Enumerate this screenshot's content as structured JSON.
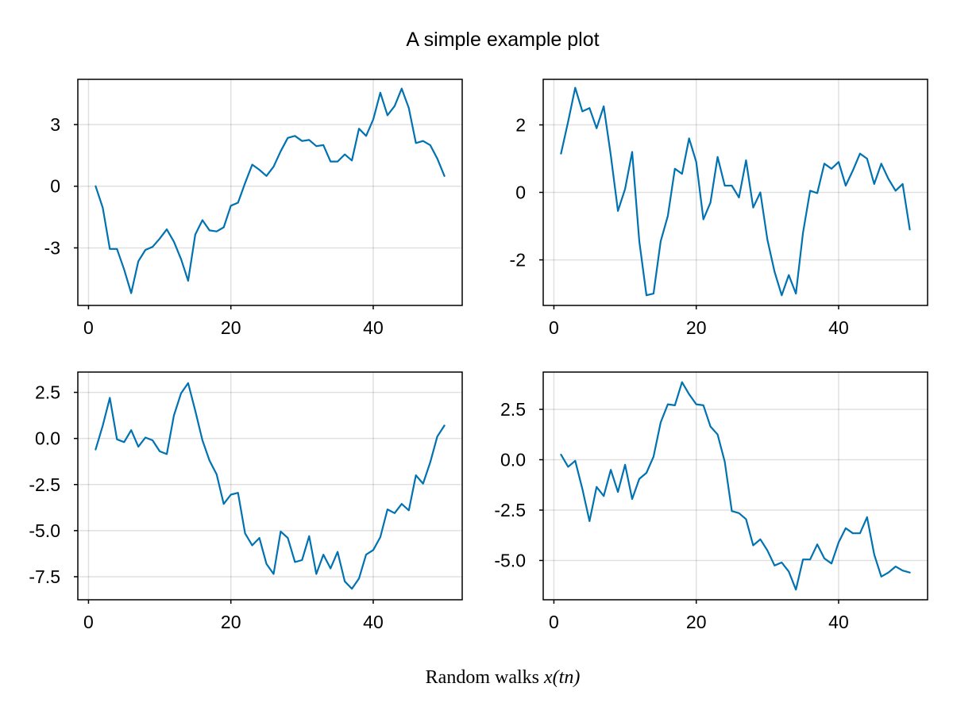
{
  "figure": {
    "title": "A simple example plot",
    "xlabel_text": "Random walks ",
    "xlabel_math": "x(tn)"
  },
  "chart_data": [
    {
      "type": "line",
      "title": "",
      "xlabel": "",
      "ylabel": "",
      "grid": true,
      "xlim": [
        -1.5,
        52.5
      ],
      "ylim": [
        -5.8,
        5.2
      ],
      "xticks": [
        0,
        20,
        40
      ],
      "xtick_labels": [
        "0",
        "20",
        "40"
      ],
      "yticks": [
        -3,
        0,
        3
      ],
      "ytick_labels": [
        "-3",
        "0",
        "3"
      ],
      "color": "#0072b2",
      "series": [
        {
          "x": [
            1,
            2,
            3,
            4,
            5,
            6,
            7,
            8,
            9,
            10,
            11,
            12,
            13,
            14,
            15,
            16,
            17,
            18,
            19,
            20,
            21,
            22,
            23,
            24,
            25,
            26,
            27,
            28,
            29,
            30,
            31,
            32,
            33,
            34,
            35,
            36,
            37,
            38,
            39,
            40,
            41,
            42,
            43,
            44,
            45,
            46,
            47,
            48,
            49,
            50
          ],
          "values": [
            0,
            -1.05,
            -3.05,
            -3.05,
            -4.05,
            -5.2,
            -3.65,
            -3.1,
            -2.95,
            -2.55,
            -2.1,
            -2.7,
            -3.55,
            -4.6,
            -2.35,
            -1.65,
            -2.15,
            -2.2,
            -2.0,
            -0.95,
            -0.8,
            0.15,
            1.05,
            0.8,
            0.5,
            0.95,
            1.7,
            2.35,
            2.45,
            2.2,
            2.25,
            1.95,
            2.0,
            1.2,
            1.2,
            1.55,
            1.25,
            2.8,
            2.45,
            3.25,
            4.55,
            3.45,
            3.9,
            4.75,
            3.8,
            2.1,
            2.2,
            2.0,
            1.35,
            0.5
          ]
        }
      ]
    },
    {
      "type": "line",
      "title": "",
      "xlabel": "",
      "ylabel": "",
      "grid": true,
      "xlim": [
        -1.5,
        52.5
      ],
      "ylim": [
        -3.35,
        3.35
      ],
      "xticks": [
        0,
        20,
        40
      ],
      "xtick_labels": [
        "0",
        "20",
        "40"
      ],
      "yticks": [
        -2,
        0,
        2
      ],
      "ytick_labels": [
        "-2",
        "0",
        "2"
      ],
      "color": "#0072b2",
      "series": [
        {
          "x": [
            1,
            2,
            3,
            4,
            5,
            6,
            7,
            8,
            9,
            10,
            11,
            12,
            13,
            14,
            15,
            16,
            17,
            18,
            19,
            20,
            21,
            22,
            23,
            24,
            25,
            26,
            27,
            28,
            29,
            30,
            31,
            32,
            33,
            34,
            35,
            36,
            37,
            38,
            39,
            40,
            41,
            42,
            43,
            44,
            45,
            46,
            47,
            48,
            49,
            50
          ],
          "values": [
            1.15,
            2.1,
            3.1,
            2.4,
            2.5,
            1.9,
            2.55,
            1.1,
            -0.55,
            0.1,
            1.2,
            -1.45,
            -3.05,
            -3.0,
            -1.45,
            -0.7,
            0.7,
            0.55,
            1.6,
            0.9,
            -0.8,
            -0.3,
            1.05,
            0.2,
            0.2,
            -0.15,
            0.95,
            -0.45,
            0.0,
            -1.4,
            -2.35,
            -3.05,
            -2.45,
            -3.0,
            -1.2,
            0.05,
            -0.02,
            0.85,
            0.7,
            0.9,
            0.2,
            0.65,
            1.15,
            1.0,
            0.25,
            0.85,
            0.4,
            0.05,
            0.25,
            -1.1
          ]
        }
      ]
    },
    {
      "type": "line",
      "title": "",
      "xlabel": "",
      "ylabel": "",
      "grid": true,
      "xlim": [
        -1.5,
        52.5
      ],
      "ylim": [
        -8.75,
        3.6
      ],
      "xticks": [
        0,
        20,
        40
      ],
      "xtick_labels": [
        "0",
        "20",
        "40"
      ],
      "yticks": [
        -7.5,
        -5,
        -2.5,
        0,
        2.5
      ],
      "ytick_labels": [
        "-7.5",
        "-5.0",
        "-2.5",
        "0.0",
        "2.5"
      ],
      "color": "#0072b2",
      "series": [
        {
          "x": [
            1,
            2,
            3,
            4,
            5,
            6,
            7,
            8,
            9,
            10,
            11,
            12,
            13,
            14,
            15,
            16,
            17,
            18,
            19,
            20,
            21,
            22,
            23,
            24,
            25,
            26,
            27,
            28,
            29,
            30,
            31,
            32,
            33,
            34,
            35,
            36,
            37,
            38,
            39,
            40,
            41,
            42,
            43,
            44,
            45,
            46,
            47,
            48,
            49,
            50
          ],
          "values": [
            -0.6,
            0.7,
            2.2,
            -0.05,
            -0.2,
            0.45,
            -0.45,
            0.05,
            -0.1,
            -0.7,
            -0.85,
            1.25,
            2.45,
            3.0,
            1.5,
            -0.1,
            -1.2,
            -1.95,
            -3.55,
            -3.05,
            -2.95,
            -5.15,
            -5.8,
            -5.4,
            -6.8,
            -7.35,
            -5.05,
            -5.4,
            -6.7,
            -6.6,
            -5.3,
            -7.35,
            -6.3,
            -7.05,
            -6.15,
            -7.75,
            -8.15,
            -7.6,
            -6.3,
            -6.05,
            -5.35,
            -3.85,
            -4.05,
            -3.55,
            -3.9,
            -2.0,
            -2.45,
            -1.3,
            0.1,
            0.7
          ]
        }
      ]
    },
    {
      "type": "line",
      "title": "",
      "xlabel": "",
      "ylabel": "",
      "grid": true,
      "xlim": [
        -1.5,
        52.5
      ],
      "ylim": [
        -6.95,
        4.35
      ],
      "xticks": [
        0,
        20,
        40
      ],
      "xtick_labels": [
        "0",
        "20",
        "40"
      ],
      "yticks": [
        -5,
        -2.5,
        0,
        2.5
      ],
      "ytick_labels": [
        "-5.0",
        "-2.5",
        "0.0",
        "2.5"
      ],
      "color": "#0072b2",
      "series": [
        {
          "x": [
            1,
            2,
            3,
            4,
            5,
            6,
            7,
            8,
            9,
            10,
            11,
            12,
            13,
            14,
            15,
            16,
            17,
            18,
            19,
            20,
            21,
            22,
            23,
            24,
            25,
            26,
            27,
            28,
            29,
            30,
            31,
            32,
            33,
            34,
            35,
            36,
            37,
            38,
            39,
            40,
            41,
            42,
            43,
            44,
            45,
            46,
            47,
            48,
            49,
            50
          ],
          "values": [
            0.25,
            -0.35,
            -0.05,
            -1.45,
            -3.05,
            -1.35,
            -1.8,
            -0.5,
            -1.6,
            -0.25,
            -1.95,
            -0.95,
            -0.65,
            0.15,
            1.85,
            2.75,
            2.7,
            3.85,
            3.25,
            2.75,
            2.7,
            1.65,
            1.25,
            -0.1,
            -2.55,
            -2.65,
            -2.95,
            -4.25,
            -3.95,
            -4.5,
            -5.25,
            -5.1,
            -5.55,
            -6.45,
            -4.95,
            -4.95,
            -4.2,
            -4.9,
            -5.15,
            -4.1,
            -3.4,
            -3.65,
            -3.65,
            -2.85,
            -4.7,
            -5.8,
            -5.6,
            -5.3,
            -5.5,
            -5.6
          ]
        }
      ]
    }
  ]
}
